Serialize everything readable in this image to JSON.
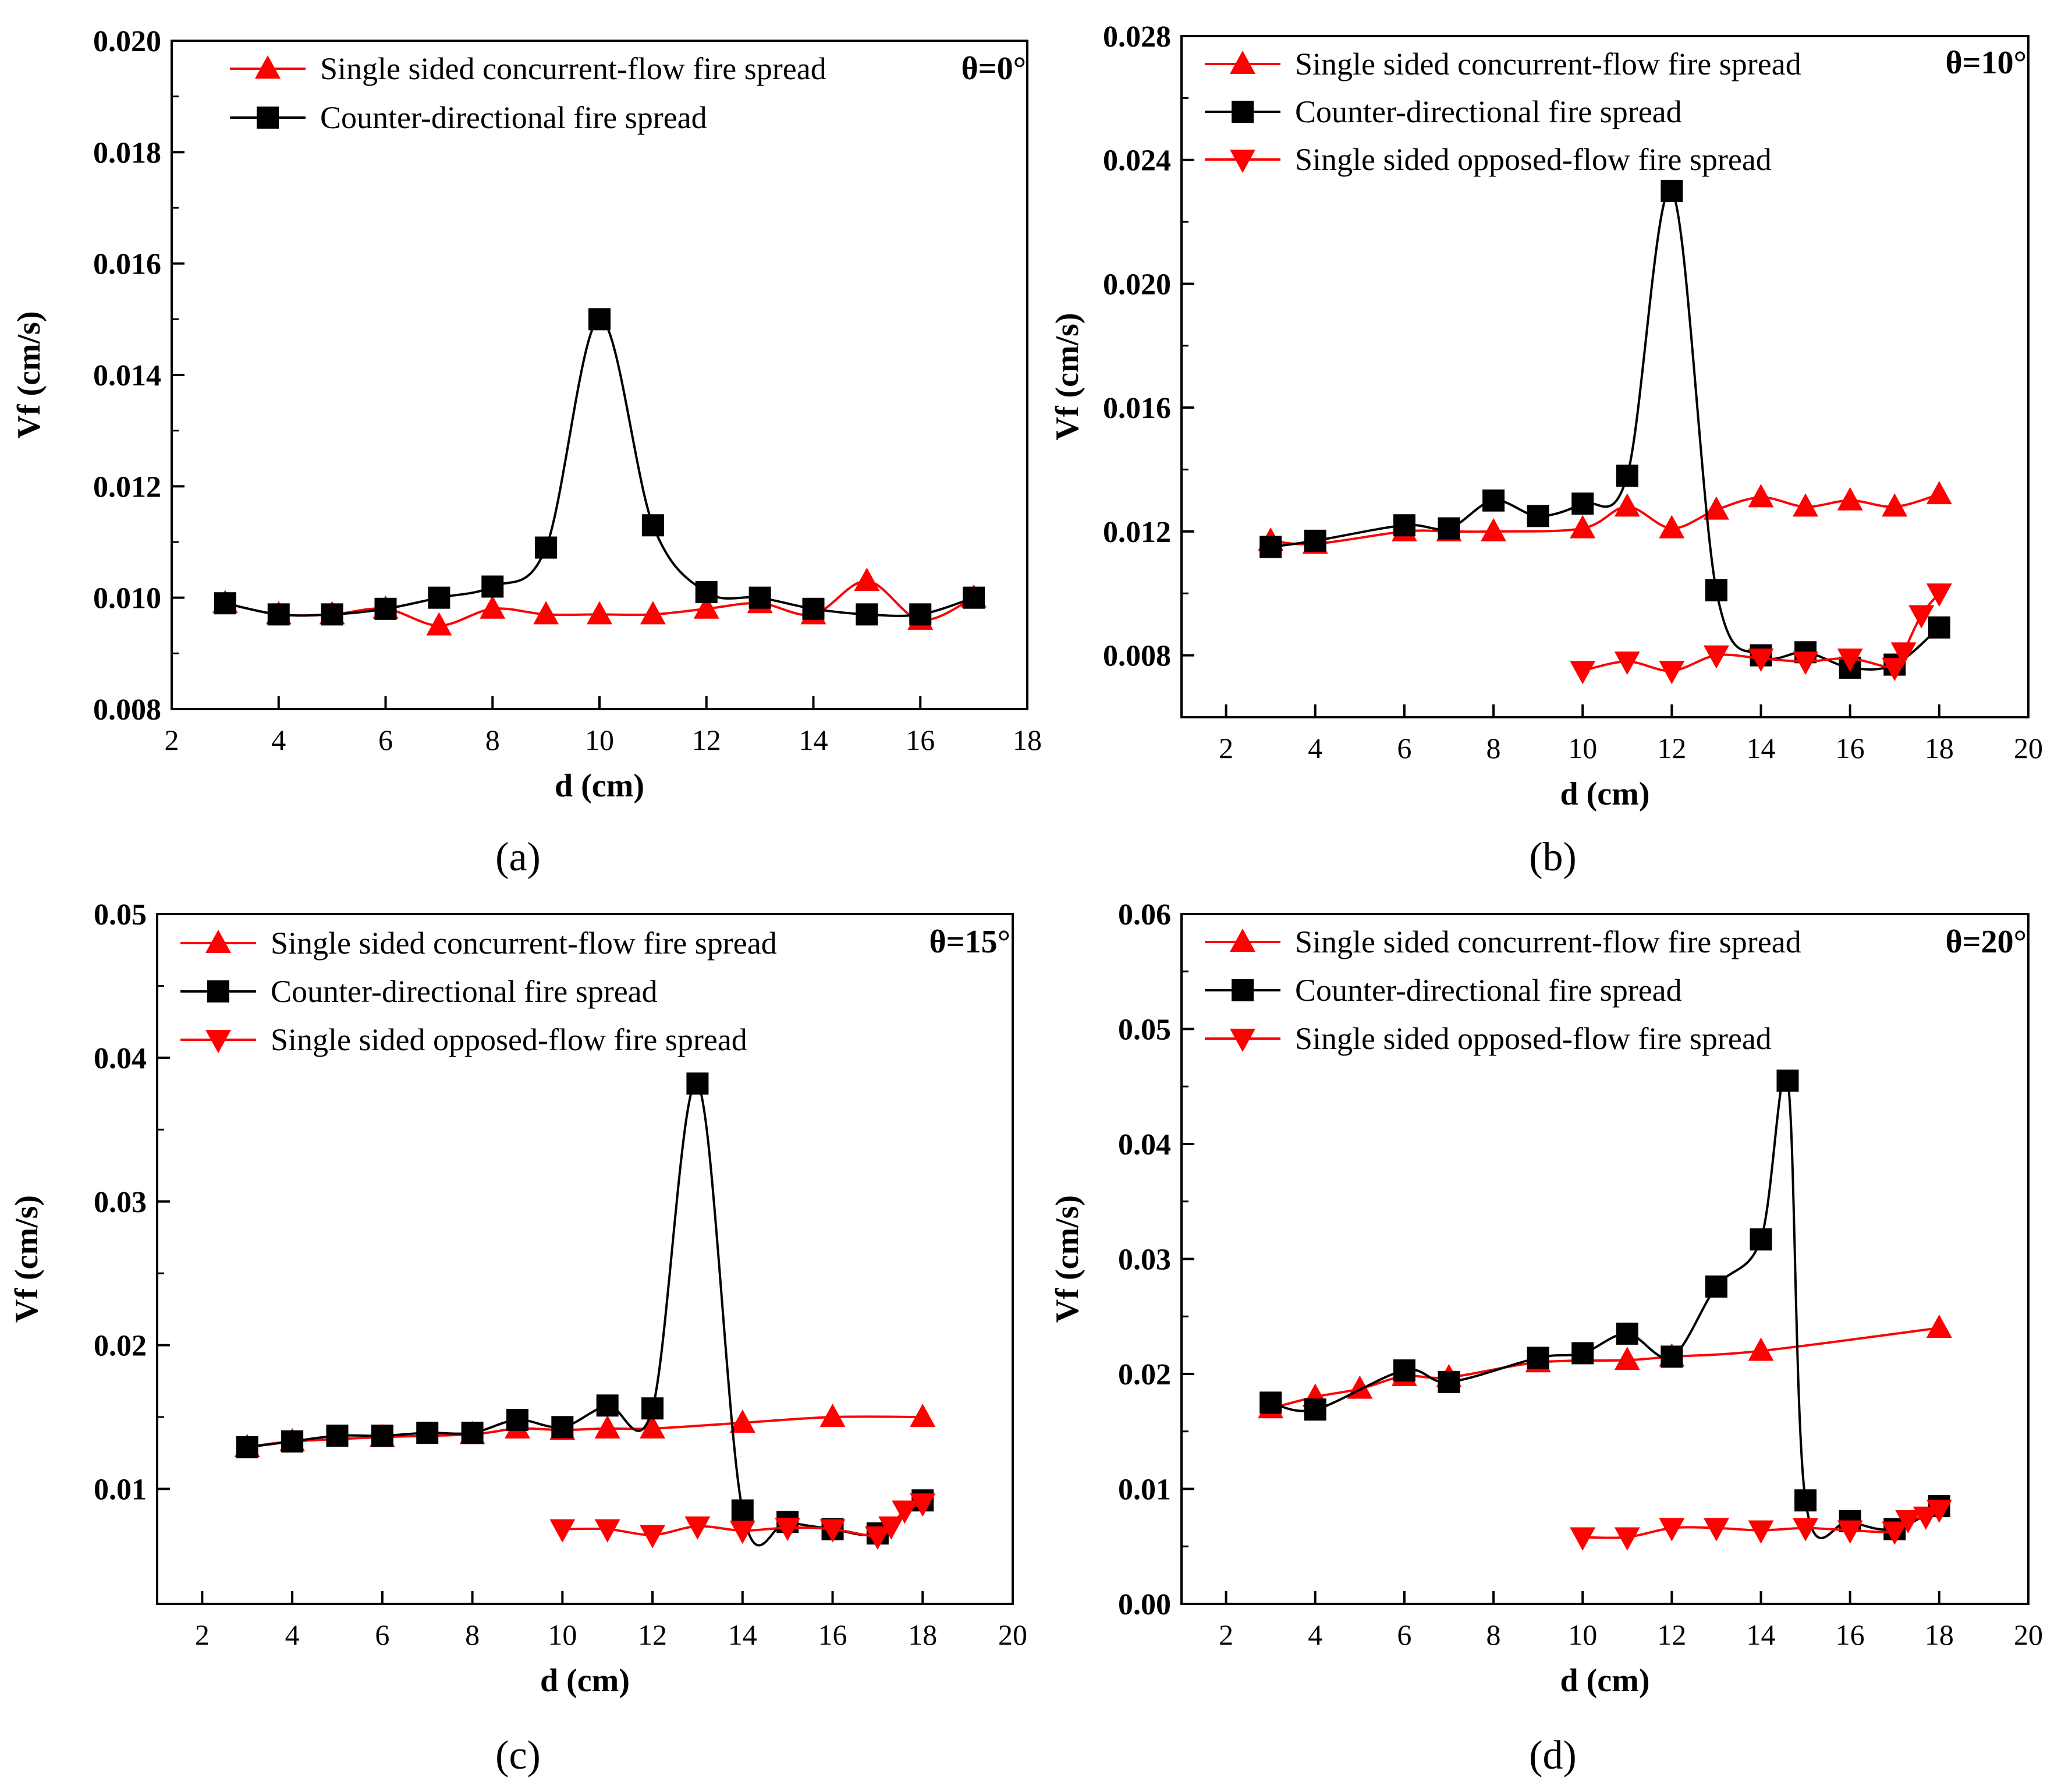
{
  "chart_data": [
    {
      "type": "line",
      "panel_label": "(a)",
      "xlabel": "d (cm)",
      "ylabel": "Vf (cm/s)",
      "xlim": [
        2,
        18
      ],
      "xticks": [
        2,
        4,
        6,
        8,
        10,
        12,
        14,
        16,
        18
      ],
      "ylim": [
        0.008,
        0.02
      ],
      "yticks": [
        0.008,
        0.01,
        0.012,
        0.014,
        0.016,
        0.018,
        0.02
      ],
      "ytick_labels": [
        "0.008",
        "0.010",
        "0.012",
        "0.014",
        "0.016",
        "0.018",
        "0.020"
      ],
      "annotation": "θ=0°",
      "grid": false,
      "legend_position": "top-left",
      "series": [
        {
          "name": "Single sided concurrent-flow fire spread",
          "color": "#ff0000",
          "marker": "triangle-up",
          "x": [
            3,
            4,
            5,
            6,
            7,
            8,
            9,
            10,
            11,
            12,
            13,
            14,
            15,
            16,
            17
          ],
          "y": [
            0.0099,
            0.0097,
            0.0097,
            0.0098,
            0.0095,
            0.0098,
            0.0097,
            0.0097,
            0.0097,
            0.0098,
            0.0099,
            0.0097,
            0.0103,
            0.0096,
            0.01
          ]
        },
        {
          "name": "Counter-directional fire spread",
          "color": "#000000",
          "marker": "square",
          "x": [
            3,
            4,
            5,
            6,
            7,
            8,
            9,
            10,
            11,
            12,
            13,
            14,
            15,
            16,
            17
          ],
          "y": [
            0.0099,
            0.0097,
            0.0097,
            0.0098,
            0.01,
            0.0102,
            0.0109,
            0.015,
            0.0113,
            0.0101,
            0.01,
            0.0098,
            0.0097,
            0.0097,
            0.01
          ]
        }
      ]
    },
    {
      "type": "line",
      "panel_label": "(b)",
      "xlabel": "d (cm)",
      "ylabel": "Vf (cm/s)",
      "xlim": [
        1,
        20
      ],
      "xticks": [
        2,
        4,
        6,
        8,
        10,
        12,
        14,
        16,
        18,
        20
      ],
      "ylim": [
        0.006,
        0.028
      ],
      "yticks": [
        0.008,
        0.012,
        0.016,
        0.02,
        0.024,
        0.028
      ],
      "ytick_labels": [
        "0.008",
        "0.012",
        "0.016",
        "0.020",
        "0.024",
        "0.028"
      ],
      "annotation": "θ=10°",
      "grid": false,
      "legend_position": "top-left",
      "series": [
        {
          "name": "Single sided concurrent-flow fire spread",
          "color": "#ff0000",
          "marker": "triangle-up",
          "x": [
            3,
            4,
            6,
            7,
            8,
            10,
            11,
            12,
            13,
            14,
            15,
            16,
            17,
            18
          ],
          "y": [
            0.0117,
            0.0116,
            0.012,
            0.012,
            0.012,
            0.0121,
            0.0128,
            0.0121,
            0.0127,
            0.0131,
            0.0128,
            0.013,
            0.0128,
            0.0132
          ]
        },
        {
          "name": "Counter-directional fire spread",
          "color": "#000000",
          "marker": "square",
          "x": [
            3,
            4,
            6,
            7,
            8,
            9,
            10,
            11,
            12,
            13,
            14,
            15,
            16,
            17,
            18
          ],
          "y": [
            0.0115,
            0.0117,
            0.0122,
            0.0121,
            0.013,
            0.0125,
            0.0129,
            0.0138,
            0.023,
            0.0101,
            0.008,
            0.0081,
            0.0076,
            0.0077,
            0.0089
          ]
        },
        {
          "name": "Single sided opposed-flow fire spread",
          "color": "#ff0000",
          "marker": "triangle-down",
          "x": [
            10,
            11,
            12,
            13,
            14,
            15,
            16,
            17,
            17.2,
            17.6,
            18
          ],
          "y": [
            0.0075,
            0.0078,
            0.0075,
            0.008,
            0.0079,
            0.0078,
            0.0079,
            0.0076,
            0.0081,
            0.0093,
            0.01
          ]
        }
      ]
    },
    {
      "type": "line",
      "panel_label": "(c)",
      "xlabel": "d (cm)",
      "ylabel": "Vf (cm/s)",
      "xlim": [
        1,
        20
      ],
      "xticks": [
        2,
        4,
        6,
        8,
        10,
        12,
        14,
        16,
        18,
        20
      ],
      "ylim": [
        0.002,
        0.05
      ],
      "yticks": [
        0.01,
        0.02,
        0.03,
        0.04,
        0.05
      ],
      "ytick_labels": [
        "0.01",
        "0.02",
        "0.03",
        "0.04",
        "0.05"
      ],
      "annotation": "θ=15°",
      "grid": false,
      "legend_position": "top-left",
      "series": [
        {
          "name": "Single sided concurrent-flow fire spread",
          "color": "#ff0000",
          "marker": "triangle-up",
          "x": [
            3,
            4,
            6,
            8,
            9,
            10,
            11,
            12,
            14,
            16,
            18
          ],
          "y": [
            0.0129,
            0.0133,
            0.0136,
            0.0138,
            0.0142,
            0.0141,
            0.0142,
            0.0142,
            0.0146,
            0.015,
            0.015
          ]
        },
        {
          "name": "Counter-directional fire spread",
          "color": "#000000",
          "marker": "square",
          "x": [
            3,
            4,
            5,
            6,
            7,
            8,
            9,
            10,
            11,
            12,
            13,
            14,
            15,
            16,
            17,
            18
          ],
          "y": [
            0.0129,
            0.0133,
            0.0137,
            0.0137,
            0.0139,
            0.0139,
            0.0148,
            0.0143,
            0.0158,
            0.0156,
            0.0382,
            0.0085,
            0.0077,
            0.0072,
            0.0069,
            0.0092
          ]
        },
        {
          "name": "Single sided opposed-flow fire spread",
          "color": "#ff0000",
          "marker": "triangle-down",
          "x": [
            10,
            11,
            12,
            13,
            14,
            15,
            16,
            17,
            17.3,
            17.6,
            18
          ],
          "y": [
            0.0072,
            0.0072,
            0.0068,
            0.0074,
            0.0071,
            0.0073,
            0.0072,
            0.0067,
            0.0074,
            0.0085,
            0.009
          ]
        }
      ]
    },
    {
      "type": "line",
      "panel_label": "(d)",
      "xlabel": "d (cm)",
      "ylabel": "Vf (cm/s)",
      "xlim": [
        1,
        20
      ],
      "xticks": [
        2,
        4,
        6,
        8,
        10,
        12,
        14,
        16,
        18,
        20
      ],
      "ylim": [
        0.0,
        0.06
      ],
      "yticks": [
        0.0,
        0.01,
        0.02,
        0.03,
        0.04,
        0.05,
        0.06
      ],
      "ytick_labels": [
        "0.00",
        "0.01",
        "0.02",
        "0.03",
        "0.04",
        "0.05",
        "0.06"
      ],
      "annotation": "θ=20°",
      "grid": false,
      "legend_position": "top-left",
      "series": [
        {
          "name": "Single sided concurrent-flow fire spread",
          "color": "#ff0000",
          "marker": "triangle-up",
          "x": [
            3,
            4,
            5,
            6,
            7,
            9,
            11,
            12,
            14,
            18
          ],
          "y": [
            0.017,
            0.018,
            0.0187,
            0.0198,
            0.0197,
            0.021,
            0.0212,
            0.0215,
            0.022,
            0.024
          ]
        },
        {
          "name": "Counter-directional fire spread",
          "color": "#000000",
          "marker": "square",
          "x": [
            3,
            4,
            6,
            7,
            9,
            10,
            11,
            12,
            13,
            14,
            14.6,
            15,
            16,
            17,
            18
          ],
          "y": [
            0.0175,
            0.0169,
            0.0203,
            0.0193,
            0.0214,
            0.0218,
            0.0235,
            0.0215,
            0.0276,
            0.0317,
            0.0455,
            0.009,
            0.0072,
            0.0065,
            0.0085
          ]
        },
        {
          "name": "Single sided opposed-flow fire spread",
          "color": "#ff0000",
          "marker": "triangle-down",
          "x": [
            10,
            11,
            12,
            13,
            14,
            15,
            16,
            17,
            17.3,
            17.7,
            18
          ],
          "y": [
            0.0058,
            0.0058,
            0.0066,
            0.0066,
            0.0064,
            0.0066,
            0.0064,
            0.0063,
            0.0073,
            0.0076,
            0.0082
          ]
        }
      ]
    }
  ]
}
